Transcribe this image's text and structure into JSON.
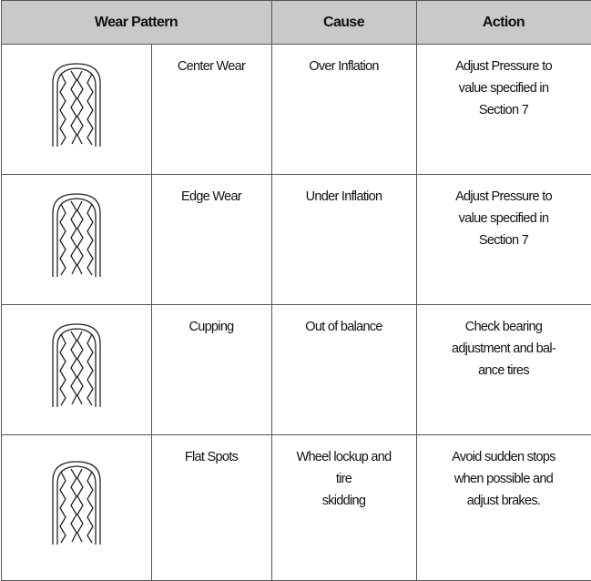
{
  "table": {
    "header": [
      "Wear Pattern",
      "Cause",
      "Action"
    ],
    "rows": [
      {
        "pattern": "Center Wear",
        "cause": [
          "Over Inflation"
        ],
        "action": [
          "Adjust Pressure to",
          "value specified in",
          "Section 7"
        ]
      },
      {
        "pattern": "Edge Wear",
        "cause": [
          "Under Inflation"
        ],
        "action": [
          "Adjust Pressure to",
          "value specified in",
          "Section 7"
        ]
      },
      {
        "pattern": "Cupping",
        "cause": [
          "Out of balance"
        ],
        "action": [
          "Check bearing",
          "adjustment and bal-",
          "ance tires"
        ]
      },
      {
        "pattern": "Flat Spots",
        "cause": [
          "Wheel lockup and",
          "tire",
          "skidding"
        ],
        "action": [
          "Avoid sudden stops",
          "when possible and",
          "adjust brakes."
        ]
      }
    ]
  }
}
